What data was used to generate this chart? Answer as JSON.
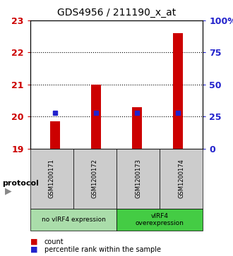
{
  "title": "GDS4956 / 211190_x_at",
  "samples": [
    "GSM1200171",
    "GSM1200172",
    "GSM1200173",
    "GSM1200174"
  ],
  "count_values": [
    19.85,
    21.0,
    20.3,
    22.6
  ],
  "percentile_pct": [
    28,
    28,
    28,
    28
  ],
  "ylim_left": [
    19,
    23
  ],
  "ylim_right": [
    0,
    100
  ],
  "yticks_left": [
    19,
    20,
    21,
    22,
    23
  ],
  "yticks_right": [
    0,
    25,
    50,
    75,
    100
  ],
  "ytick_labels_right": [
    "0",
    "25",
    "50",
    "75",
    "100%"
  ],
  "bar_color": "#cc0000",
  "dot_color": "#2222cc",
  "bar_width": 0.25,
  "groups": [
    {
      "label": "no vIRF4 expression",
      "color": "#aaddaa"
    },
    {
      "label": "vIRF4\noverexpression",
      "color": "#44cc44"
    }
  ],
  "protocol_label": "protocol",
  "legend_count_label": "count",
  "legend_pct_label": "percentile rank within the sample",
  "left_axis_color": "#cc0000",
  "right_axis_color": "#2222cc",
  "sample_box_color": "#cccccc",
  "grid_linestyle": ":",
  "grid_color": "#000000",
  "grid_linewidth": 0.8,
  "grid_ticks": [
    20,
    21,
    22
  ]
}
